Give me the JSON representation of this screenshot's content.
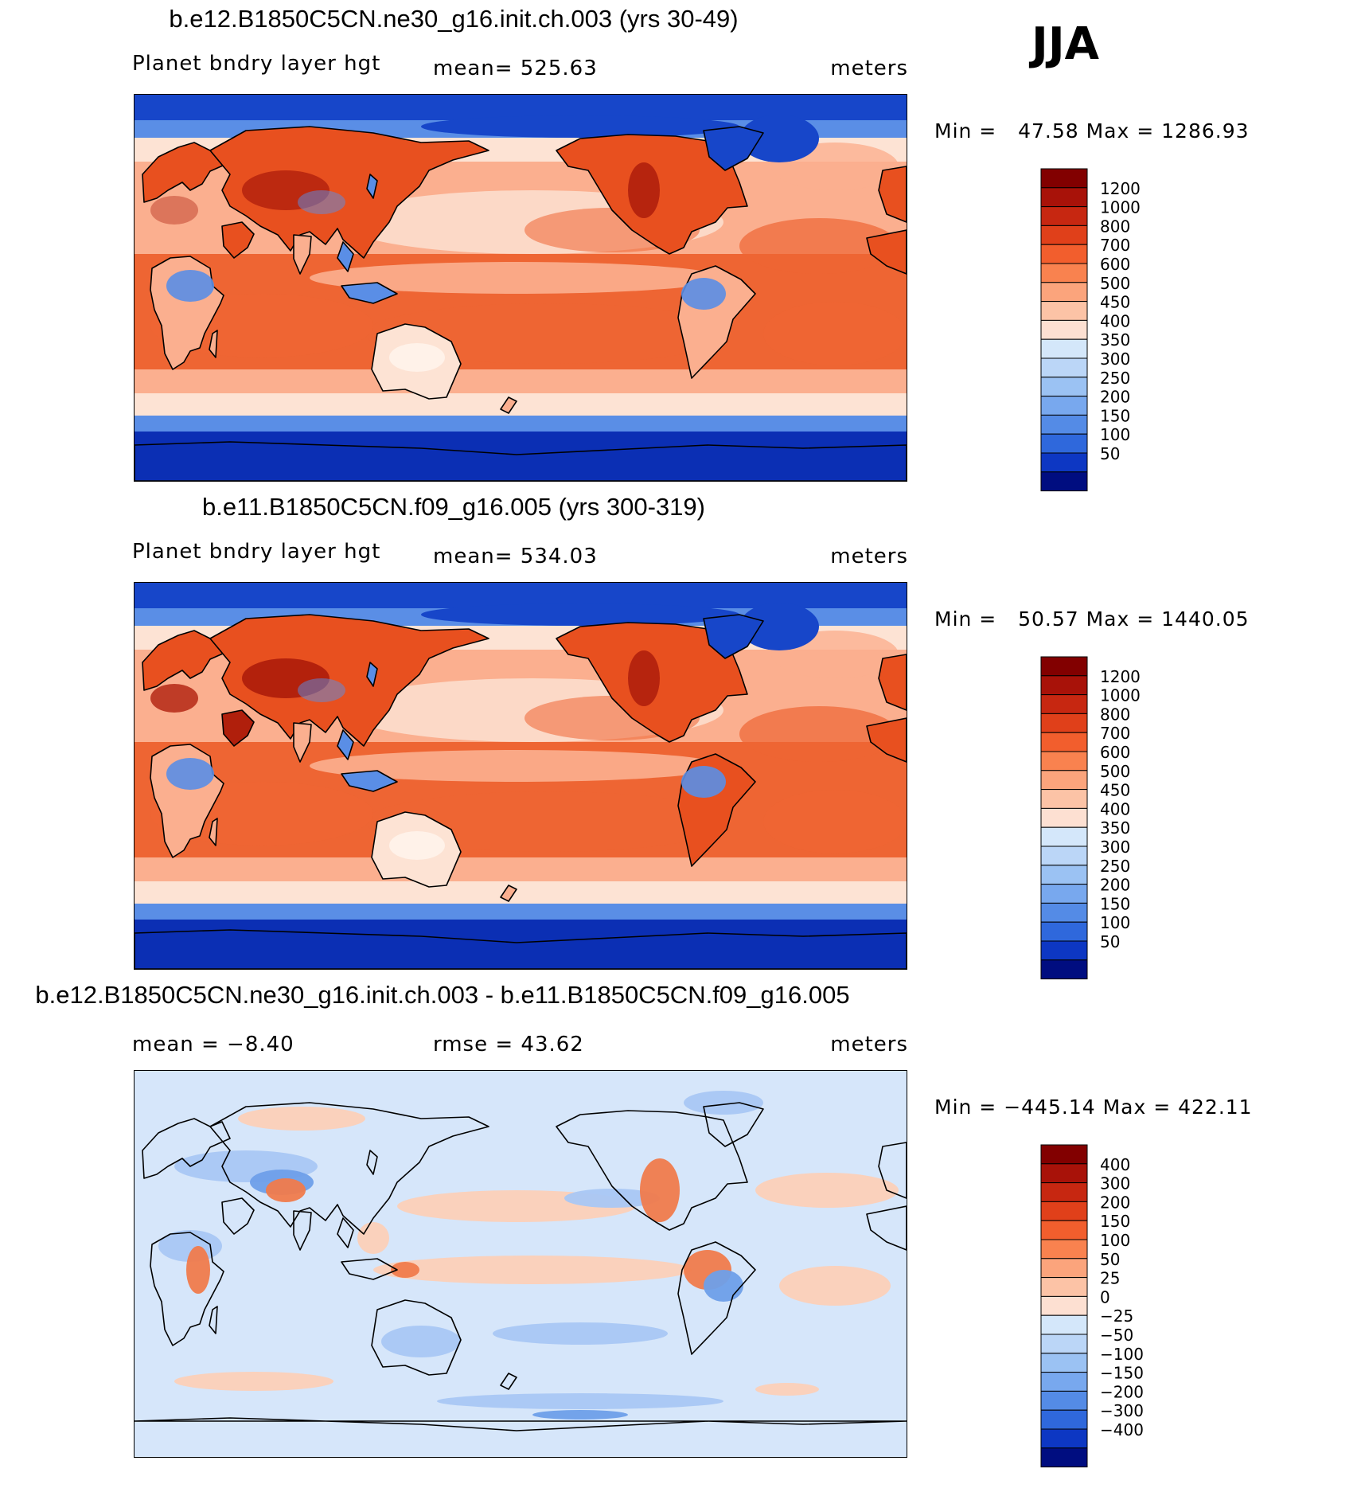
{
  "season": "JJA",
  "palette_pos": [
    "#ffffff",
    "#fde0d2",
    "#fcc3a6",
    "#fba47c",
    "#f9824f",
    "#f25e2d",
    "#e0401a",
    "#c72711",
    "#a81209",
    "#820000"
  ],
  "palette_neg": [
    "#d4e7fa",
    "#bbd6f7",
    "#9bc2f3",
    "#78a8ee",
    "#548be6",
    "#2f68dc",
    "#1a4dd4",
    "#0d37c3",
    "#0722a5",
    "#000d80"
  ],
  "map_colors": {
    "cold_ocean": "#1746c9",
    "antarctic": "#0b2fb4",
    "red_land": "#e8501f",
    "dark_red": "#b01f0c",
    "trop_ocean": "#ee6533",
    "salmon": "#fbaf8f",
    "pale": "#fde3d4",
    "blue_mid": "#5a8ee6",
    "diff_bg": "#d6e6fa",
    "diff_pos": "#fcd0b8",
    "diff_neg": "#a9c7f4",
    "diff_neg2": "#6e9fe9",
    "diff_red": "#f07b4c"
  },
  "panels": [
    {
      "title": "b.e12.B1850C5CN.ne30_g16.init.ch.003 (yrs 30-49)",
      "left_label": "Planet bndry layer hgt",
      "center_label": "mean=  525.63",
      "right_label": "meters",
      "minmax": "Min =   47.58 Max = 1286.93",
      "kind": "abs",
      "variant": 1
    },
    {
      "title": "b.e11.B1850C5CN.f09_g16.005 (yrs 300-319)",
      "left_label": "Planet bndry layer hgt",
      "center_label": "mean=  534.03",
      "right_label": "meters",
      "minmax": "Min =   50.57 Max = 1440.05",
      "kind": "abs",
      "variant": 2
    },
    {
      "title": "b.e12.B1850C5CN.ne30_g16.init.ch.003 - b.e11.B1850C5CN.f09_g16.005",
      "left_label": "mean =   −8.40",
      "center_label": "rmse =   43.62",
      "right_label": "meters",
      "minmax": "Min = −445.14 Max = 422.11",
      "kind": "diff",
      "variant": 3
    }
  ],
  "chart_data": [
    {
      "type": "heatmap",
      "title": "b.e12.B1850C5CN.ne30_g16.init.ch.003 (yrs 30-49)",
      "variable": "Planet bndry layer hgt",
      "units": "meters",
      "mean": 525.63,
      "min": 47.58,
      "max": 1286.93,
      "colorbar_levels": [
        1200,
        1000,
        800,
        700,
        600,
        500,
        450,
        400,
        350,
        300,
        250,
        200,
        150,
        100,
        50
      ],
      "colorbar_colors": [
        "#820000",
        "#a81209",
        "#c72711",
        "#e0401a",
        "#f25e2d",
        "#f9824f",
        "#fba47c",
        "#fcc3a6",
        "#fde0d2",
        "#d4e7fa",
        "#bbd6f7",
        "#9bc2f3",
        "#78a8ee",
        "#548be6",
        "#2f68dc",
        "#0d37c3",
        "#000d80"
      ]
    },
    {
      "type": "heatmap",
      "title": "b.e11.B1850C5CN.f09_g16.005 (yrs 300-319)",
      "variable": "Planet bndry layer hgt",
      "units": "meters",
      "mean": 534.03,
      "min": 50.57,
      "max": 1440.05,
      "colorbar_levels": [
        1200,
        1000,
        800,
        700,
        600,
        500,
        450,
        400,
        350,
        300,
        250,
        200,
        150,
        100,
        50
      ],
      "colorbar_colors": [
        "#820000",
        "#a81209",
        "#c72711",
        "#e0401a",
        "#f25e2d",
        "#f9824f",
        "#fba47c",
        "#fcc3a6",
        "#fde0d2",
        "#d4e7fa",
        "#bbd6f7",
        "#9bc2f3",
        "#78a8ee",
        "#548be6",
        "#2f68dc",
        "#0d37c3",
        "#000d80"
      ]
    },
    {
      "type": "heatmap",
      "title": "b.e12.B1850C5CN.ne30_g16.init.ch.003 - b.e11.B1850C5CN.f09_g16.005",
      "units": "meters",
      "mean": -8.4,
      "rmse": 43.62,
      "min": -445.14,
      "max": 422.11,
      "colorbar_levels": [
        400,
        300,
        200,
        150,
        100,
        50,
        25,
        0,
        -25,
        -50,
        -100,
        -150,
        -200,
        -300,
        -400
      ],
      "colorbar_colors": [
        "#820000",
        "#a81209",
        "#c72711",
        "#e0401a",
        "#f25e2d",
        "#f9824f",
        "#fba47c",
        "#fcc3a6",
        "#fde0d2",
        "#d4e7fa",
        "#bbd6f7",
        "#9bc2f3",
        "#78a8ee",
        "#548be6",
        "#2f68dc",
        "#0d37c3",
        "#000d80"
      ]
    }
  ]
}
